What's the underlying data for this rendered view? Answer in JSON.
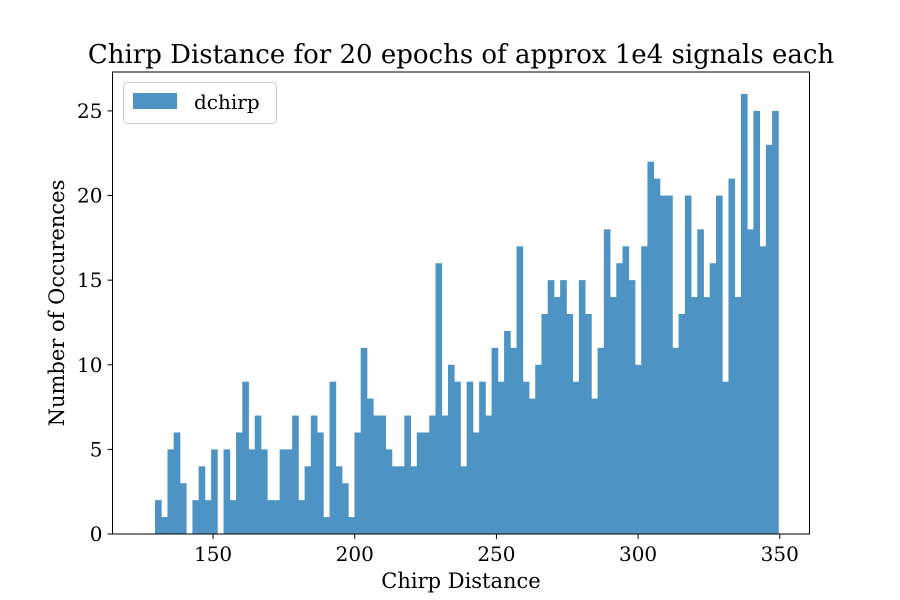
{
  "chart_data": {
    "type": "bar",
    "title": "Chirp Distance for 20 epochs of approx 1e4 signals each",
    "xlabel": "Chirp Distance",
    "ylabel": "Number of Occurences",
    "xlim": [
      114.5,
      360.5
    ],
    "ylim": [
      0,
      27.3
    ],
    "xticks": [
      150,
      200,
      250,
      300,
      350
    ],
    "yticks": [
      0,
      5,
      10,
      15,
      20,
      25
    ],
    "bin_start": 129.5,
    "bin_width": 2.2,
    "grid": false,
    "legend_position": "upper left",
    "series": [
      {
        "name": "dchirp",
        "color": "#4d93c4",
        "values": [
          2,
          1,
          5,
          6,
          3,
          0,
          2,
          4,
          2,
          5,
          0,
          5,
          2,
          6,
          9,
          5,
          7,
          5,
          2,
          2,
          5,
          5,
          7,
          2,
          4,
          7,
          6,
          1,
          9,
          4,
          3,
          1,
          6,
          11,
          8,
          7,
          7,
          5,
          4,
          4,
          7,
          4,
          6,
          6,
          7,
          16,
          7,
          10,
          9,
          4,
          9,
          6,
          9,
          7,
          11,
          9,
          12,
          11,
          17,
          9,
          8,
          10,
          13,
          15,
          14,
          15,
          13,
          9,
          15,
          13,
          8,
          11,
          18,
          14,
          16,
          17,
          15,
          10,
          17,
          22,
          21,
          20,
          20,
          11,
          13,
          20,
          14,
          18,
          14,
          16,
          20,
          9,
          21,
          14,
          26,
          18,
          25,
          17,
          23,
          25
        ]
      }
    ]
  }
}
